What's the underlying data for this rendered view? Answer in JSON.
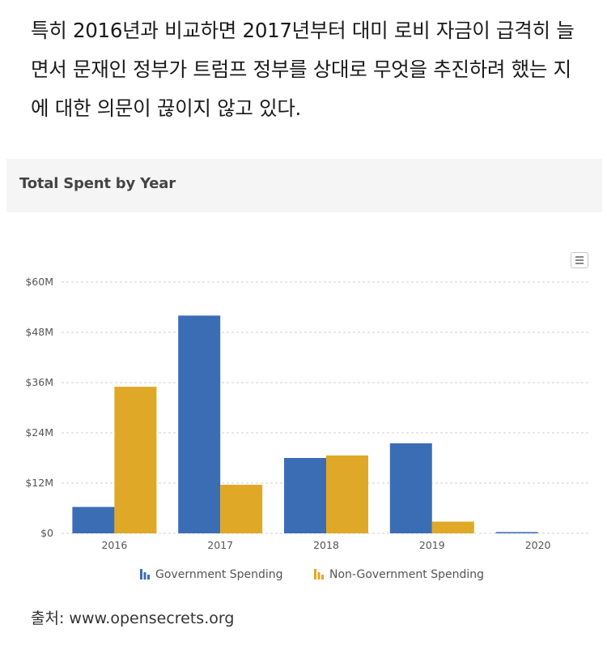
{
  "article": {
    "paragraph": "특히 2016년과 비교하면 2017년부터 대미 로비 자금이 급격히 늘면서 문재인 정부가 트럼프 정부를 상대로 무엇을 추진하려 했는 지에 대한 의문이 끊이지 않고 있다."
  },
  "source": {
    "text": "출처: www.opensecrets.org"
  },
  "menu": {
    "icon": "hamburger-menu-icon"
  },
  "chart_data": {
    "type": "bar",
    "title": "Total Spent by Year",
    "xlabel": "",
    "ylabel": "",
    "categories": [
      "2016",
      "2017",
      "2018",
      "2019",
      "2020"
    ],
    "series": [
      {
        "name": "Government Spending",
        "color": "#3b6db5",
        "values": [
          6.3,
          52.0,
          18.0,
          21.5,
          0.3
        ]
      },
      {
        "name": "Non-Government Spending",
        "color": "#dfa826",
        "values": [
          35.0,
          11.6,
          18.6,
          2.8,
          0
        ]
      }
    ],
    "ylim": [
      0,
      60
    ],
    "yticks": [
      {
        "value": 0,
        "label": "$0"
      },
      {
        "value": 12,
        "label": "$12M"
      },
      {
        "value": 24,
        "label": "$24M"
      },
      {
        "value": 36,
        "label": "$36M"
      },
      {
        "value": 48,
        "label": "$48M"
      },
      {
        "value": 60,
        "label": "$60M"
      }
    ],
    "grid": true,
    "legend_position": "bottom"
  }
}
